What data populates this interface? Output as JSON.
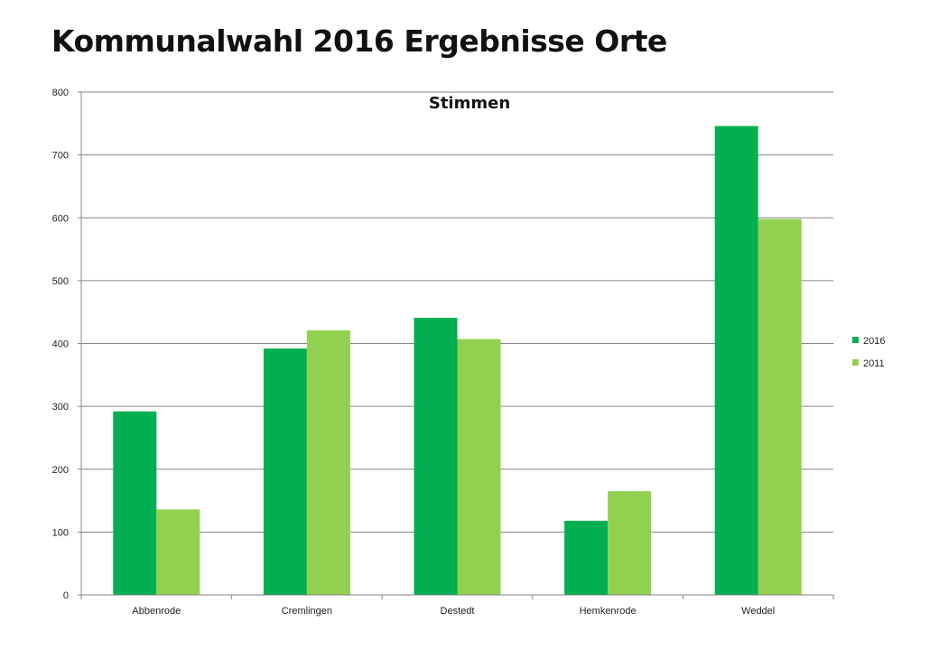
{
  "page": {
    "title": "Kommunalwahl 2016 Ergebnisse Orte"
  },
  "chart_data": {
    "type": "bar",
    "title": "Stimmen",
    "xlabel": "",
    "ylabel": "",
    "categories": [
      "Abbenrode",
      "Cremlingen",
      "Destedt",
      "Hemkenrode",
      "Weddel"
    ],
    "series": [
      {
        "name": "2016",
        "color": "#00b050",
        "values": [
          292,
          392,
          441,
          118,
          746
        ]
      },
      {
        "name": "2011",
        "color": "#92d050",
        "values": [
          136,
          421,
          407,
          165,
          598
        ]
      }
    ],
    "ylim": [
      0,
      800
    ],
    "yticks": [
      0,
      100,
      200,
      300,
      400,
      500,
      600,
      700,
      800
    ],
    "grid": true,
    "legend": "right"
  }
}
